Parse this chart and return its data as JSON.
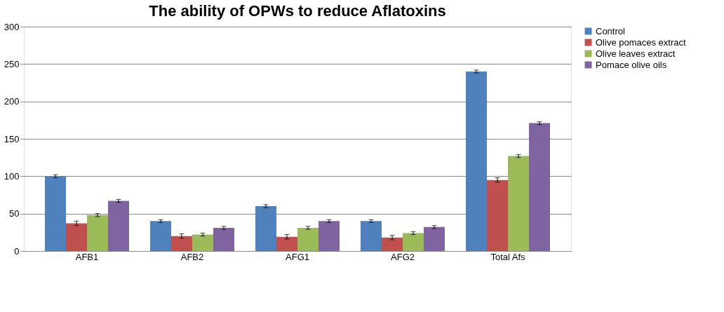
{
  "chart_data": {
    "type": "bar",
    "title": "The ability of OPWs to reduce Aflatoxins",
    "categories": [
      "AFB1",
      "AFB2",
      "AFG1",
      "AFG2",
      "Total Afs"
    ],
    "series": [
      {
        "name": "Control",
        "color": "#4f81bd",
        "values": [
          100,
          40,
          60,
          40,
          240
        ],
        "errors": [
          2,
          2,
          2,
          2,
          2
        ]
      },
      {
        "name": "Olive pomaces extract",
        "color": "#c0504d",
        "values": [
          37,
          20,
          19,
          18,
          95
        ],
        "errors": [
          3,
          3,
          3,
          3,
          3
        ]
      },
      {
        "name": "Olive leaves extract",
        "color": "#9bbb59",
        "values": [
          48,
          22,
          31,
          24,
          127
        ],
        "errors": [
          2,
          2,
          2,
          2,
          2
        ]
      },
      {
        "name": "Pomace olive oils",
        "color": "#8064a2",
        "values": [
          67,
          31,
          40,
          32,
          171
        ],
        "errors": [
          2,
          2,
          2,
          2,
          2
        ]
      }
    ],
    "ylim": [
      0,
      300
    ],
    "yticks": [
      0,
      50,
      100,
      150,
      200,
      250,
      300
    ],
    "grid": "y",
    "legend": "right"
  }
}
